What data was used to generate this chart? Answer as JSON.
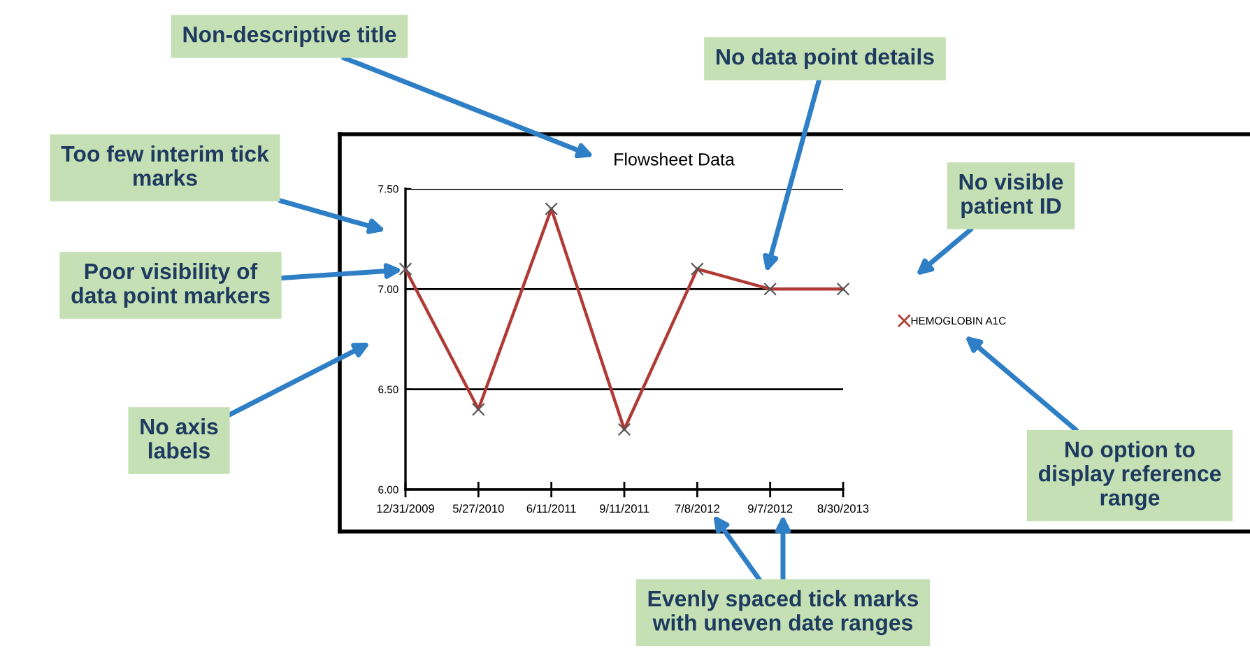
{
  "chart_data": {
    "type": "line",
    "title": "Flowsheet Data",
    "categories": [
      "12/31/2009",
      "5/27/2010",
      "6/11/2011",
      "9/11/2011",
      "7/8/2012",
      "9/7/2012",
      "8/30/2013"
    ],
    "series": [
      {
        "name": "HEMOGLOBIN A1C",
        "color": "#b03a35",
        "values": [
          7.1,
          6.4,
          7.4,
          6.3,
          7.1,
          7.0,
          7.0
        ]
      }
    ],
    "ylim": [
      6.0,
      7.5
    ],
    "yticks": [
      {
        "value": 6.0,
        "label": "6.00"
      },
      {
        "value": 6.5,
        "label": "6.50"
      },
      {
        "value": 7.0,
        "label": "7.00"
      },
      {
        "value": 7.5,
        "label": "7.50"
      }
    ],
    "grid": "y",
    "legend": "right",
    "marker": "cross",
    "line_style": "solid",
    "annotations": [
      "Non-descriptive title",
      "No data point details",
      "Too few interim tick\nmarks",
      "Poor visibility of\ndata point markers",
      "No visible\npatient ID",
      "No axis\nlabels",
      "No option to\ndisplay reference\nrange",
      "Evenly spaced tick marks\nwith uneven date ranges"
    ]
  }
}
